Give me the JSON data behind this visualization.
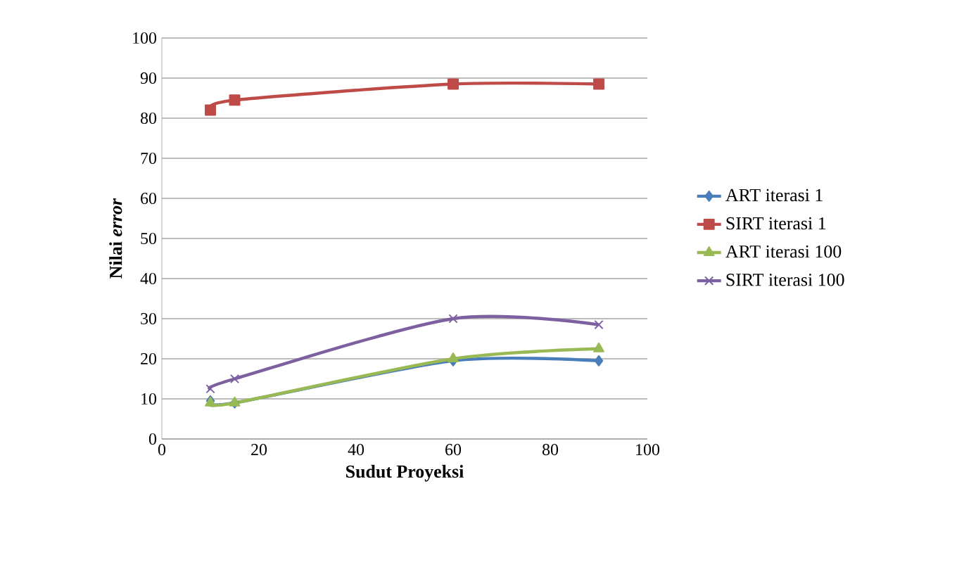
{
  "chart_data": {
    "type": "line",
    "xlabel": "Sudut Proyeksi",
    "ylabel": "Nilai *error*",
    "x": [
      10,
      15,
      60,
      90
    ],
    "series": [
      {
        "name": "ART iterasi 1",
        "color": "#4a7ebb",
        "marker": "diamond",
        "values": [
          9.5,
          9,
          19.5,
          19.5
        ]
      },
      {
        "name": "SIRT iterasi 1",
        "color": "#be4b48",
        "marker": "square",
        "values": [
          82,
          84.5,
          88.5,
          88.5
        ]
      },
      {
        "name": "ART iterasi 100",
        "color": "#98b954",
        "marker": "triangle",
        "values": [
          9,
          9,
          20,
          22.5
        ]
      },
      {
        "name": "SIRT iterasi 100",
        "color": "#7d60a0",
        "marker": "cross",
        "values": [
          12.5,
          15,
          30,
          28.5
        ]
      }
    ],
    "xlim": [
      0,
      100
    ],
    "xticks": [
      0,
      20,
      40,
      60,
      80,
      100
    ],
    "ylim": [
      0,
      100
    ],
    "yticks": [
      0,
      10,
      20,
      30,
      40,
      50,
      60,
      70,
      80,
      90,
      100
    ],
    "grid": "y",
    "legend": "right",
    "line_style": "solid"
  }
}
